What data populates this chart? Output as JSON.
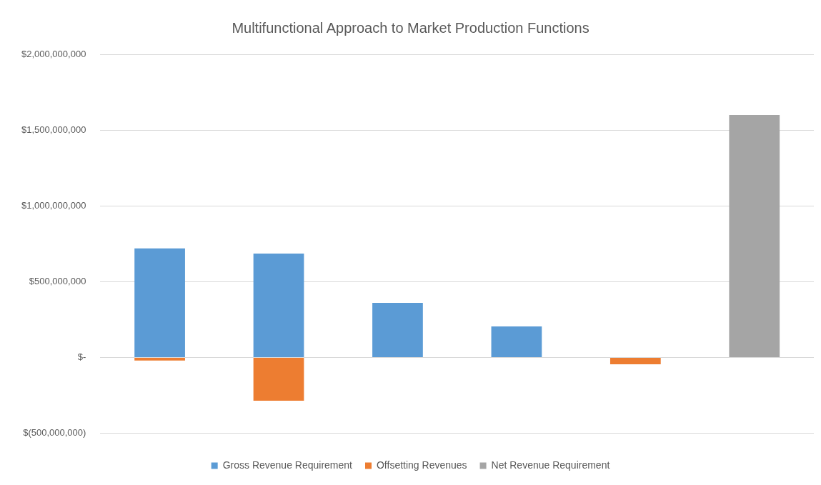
{
  "chart_data": {
    "type": "bar",
    "title": "Multifunctional Approach to Market Production Functions",
    "categories": [
      null,
      null,
      null,
      null,
      null,
      null
    ],
    "stacked": true,
    "series": [
      {
        "name": "Gross Revenue Requirement",
        "color": "#5b9bd5",
        "values": [
          720000000,
          685000000,
          360000000,
          205000000,
          null,
          null
        ]
      },
      {
        "name": "Offsetting Revenues",
        "color": "#ed7d31",
        "values": [
          -20000000,
          -285000000,
          null,
          null,
          -45000000,
          null
        ]
      },
      {
        "name": "Net Revenue Requirement",
        "color": "#a5a5a5",
        "values": [
          null,
          null,
          null,
          null,
          null,
          1600000000
        ]
      }
    ],
    "ylim": [
      -500000000,
      2000000000
    ],
    "yticks": [
      {
        "value": -500000000,
        "label": "$(500,000,000)"
      },
      {
        "value": 0,
        "label": "$-"
      },
      {
        "value": 500000000,
        "label": "$500,000,000"
      },
      {
        "value": 1000000000,
        "label": "$1,000,000,000"
      },
      {
        "value": 1500000000,
        "label": "$1,500,000,000"
      },
      {
        "value": 2000000000,
        "label": "$2,000,000,000"
      }
    ],
    "grid": "y",
    "legend": "bottom"
  }
}
